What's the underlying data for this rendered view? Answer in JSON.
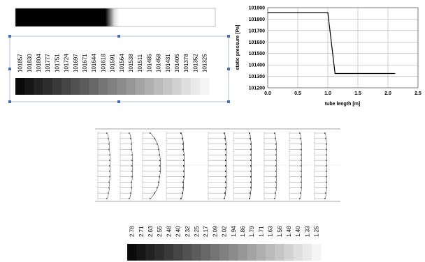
{
  "pressure_scale": {
    "labels": [
      "101857",
      "101830",
      "101804",
      "101777",
      "101751",
      "101724",
      "101697",
      "101671",
      "101644",
      "101618",
      "101591",
      "101564",
      "101538",
      "101511",
      "101485",
      "101458",
      "101431",
      "101405",
      "101378",
      "101352",
      "101325"
    ]
  },
  "velocity_scale": {
    "labels": [
      "2.78",
      "2.71",
      "2.63",
      "2.55",
      "2.48",
      "2.40",
      "2.32",
      "2.25",
      "2.17",
      "2.09",
      "2.02",
      "1.94",
      "1.86",
      "1.79",
      "1.71",
      "1.63",
      "1.56",
      "1.48",
      "1.40",
      "1.33",
      "1.25"
    ]
  },
  "chart_data": {
    "type": "line",
    "title": "",
    "xlabel": "tube length [m]",
    "ylabel": "static pressure [Pa]",
    "xlim": [
      0.0,
      2.5
    ],
    "ylim": [
      101200,
      101900
    ],
    "xticks": [
      "0.0",
      "0.5",
      "1.0",
      "1.5",
      "2.0",
      "2.5"
    ],
    "yticks": [
      "101200",
      "101300",
      "101400",
      "101500",
      "101600",
      "101700",
      "101800",
      "101900"
    ],
    "grid": true,
    "series": [
      {
        "x": [
          0.0,
          1.0,
          1.12,
          2.12
        ],
        "y": [
          101857,
          101857,
          101325,
          101325
        ]
      }
    ]
  },
  "colors": {
    "line": "#000000",
    "grid": "#b0b0b0",
    "selection": "#4a6fb0"
  }
}
